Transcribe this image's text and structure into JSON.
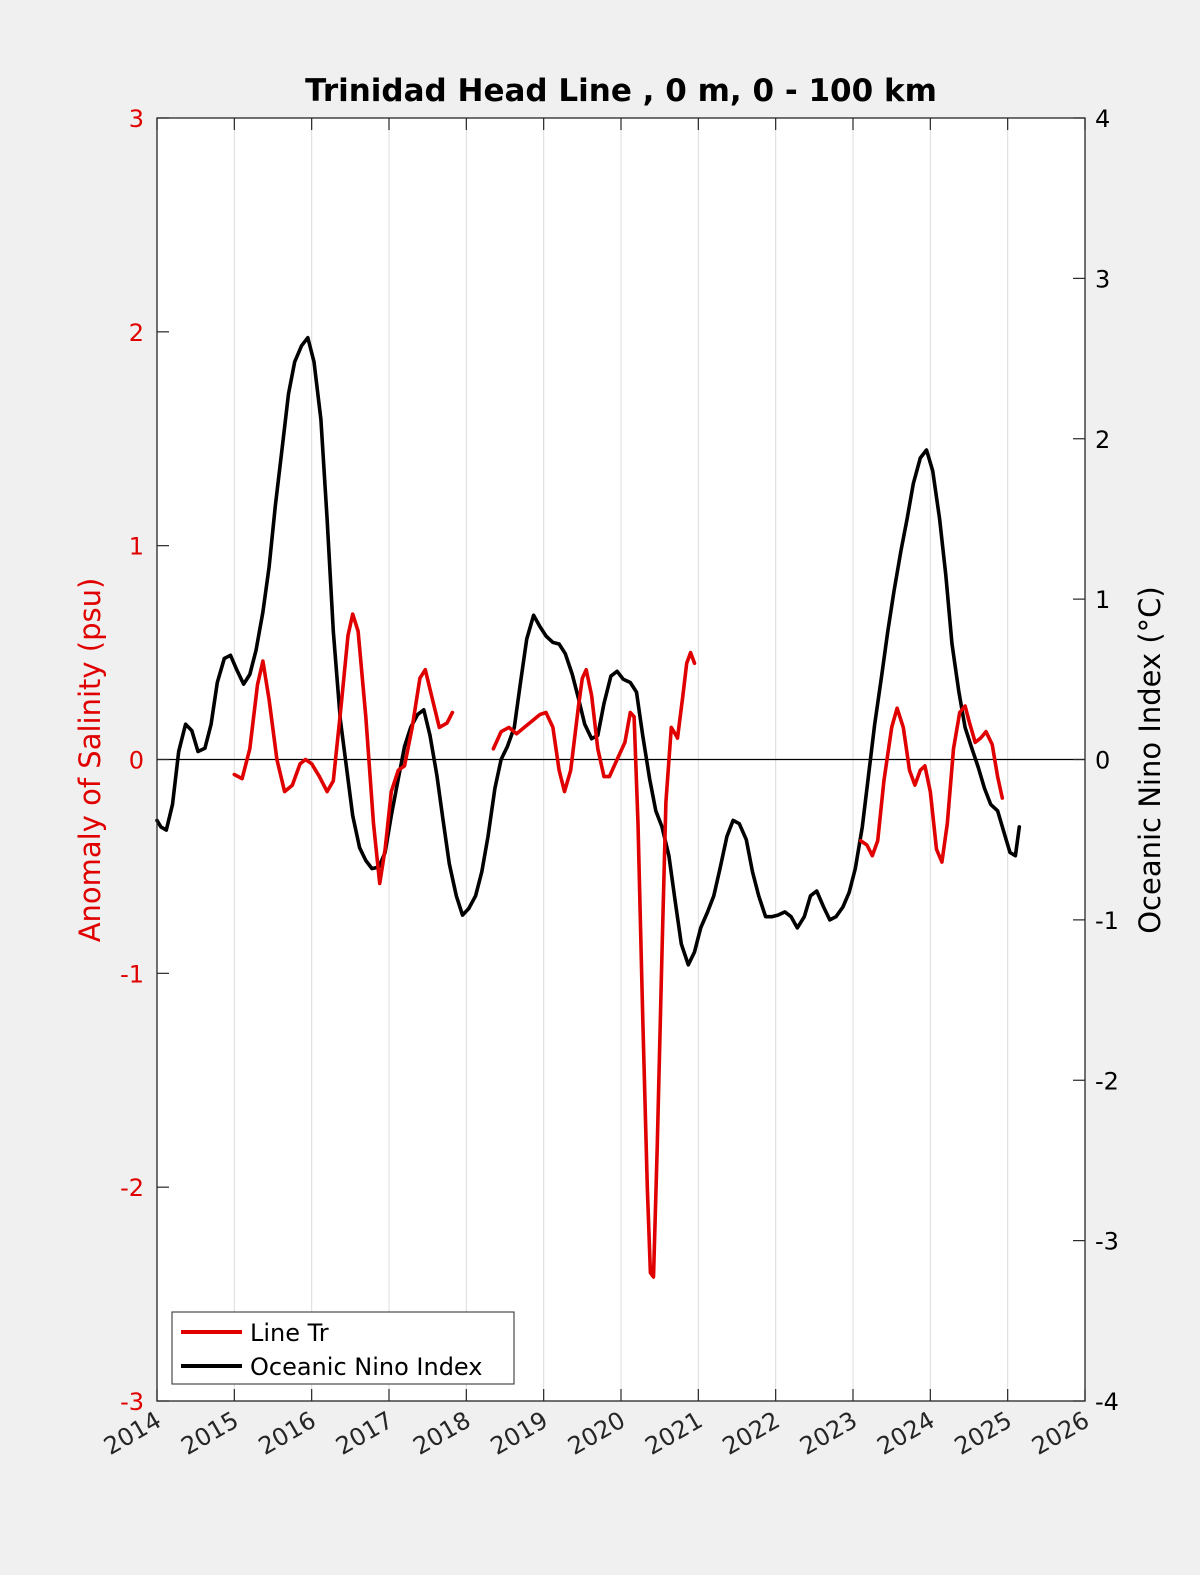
{
  "chart_data": {
    "type": "line",
    "title": "Trinidad Head Line , 0 m, 0 - 100 km",
    "xlabel": "",
    "ylabel_left": "Anomaly of Salinity (psu)",
    "ylabel_right": "Oceanic Nino Index (°C)",
    "xlim": [
      2014,
      2026
    ],
    "ylim_left": [
      -3,
      3
    ],
    "ylim_right": [
      -4,
      4
    ],
    "x_ticks": [
      "2014",
      "2015",
      "2016",
      "2017",
      "2018",
      "2019",
      "2020",
      "2021",
      "2022",
      "2023",
      "2024",
      "2025",
      "2026"
    ],
    "y_left_ticks": [
      "3",
      "2",
      "1",
      "0",
      "-1",
      "-2",
      "-3"
    ],
    "y_right_ticks": [
      "4",
      "3",
      "2",
      "1",
      "0",
      "-1",
      "-2",
      "-3",
      "-4"
    ],
    "grid": "vertical",
    "legend_position": "bottom-left",
    "colors": {
      "salinity": "#e00000",
      "oni": "#000000",
      "left_axis": "#e00000",
      "right_axis": "#000000",
      "background": "#f0f0f0"
    },
    "series": [
      {
        "name": "Line Tr",
        "axis": "left",
        "segments": [
          [
            [
              2015.0,
              -0.07
            ],
            [
              2015.1,
              -0.09
            ],
            [
              2015.2,
              0.05
            ],
            [
              2015.3,
              0.35
            ],
            [
              2015.37,
              0.46
            ],
            [
              2015.45,
              0.28
            ],
            [
              2015.55,
              0.0
            ],
            [
              2015.65,
              -0.15
            ],
            [
              2015.75,
              -0.12
            ],
            [
              2015.85,
              -0.02
            ],
            [
              2015.92,
              0.0
            ],
            [
              2016.0,
              -0.02
            ],
            [
              2016.1,
              -0.08
            ],
            [
              2016.2,
              -0.15
            ],
            [
              2016.28,
              -0.1
            ],
            [
              2016.38,
              0.25
            ],
            [
              2016.47,
              0.58
            ],
            [
              2016.53,
              0.68
            ],
            [
              2016.6,
              0.6
            ],
            [
              2016.7,
              0.2
            ],
            [
              2016.8,
              -0.3
            ],
            [
              2016.88,
              -0.58
            ],
            [
              2016.95,
              -0.42
            ],
            [
              2017.03,
              -0.15
            ],
            [
              2017.12,
              -0.05
            ],
            [
              2017.2,
              -0.03
            ],
            [
              2017.3,
              0.15
            ],
            [
              2017.4,
              0.38
            ],
            [
              2017.47,
              0.42
            ],
            [
              2017.55,
              0.3
            ],
            [
              2017.65,
              0.15
            ],
            [
              2017.75,
              0.17
            ],
            [
              2017.82,
              0.22
            ]
          ],
          [
            [
              2018.35,
              0.05
            ],
            [
              2018.45,
              0.13
            ],
            [
              2018.55,
              0.15
            ],
            [
              2018.65,
              0.12
            ],
            [
              2018.75,
              0.15
            ],
            [
              2018.85,
              0.18
            ],
            [
              2018.95,
              0.21
            ],
            [
              2019.03,
              0.22
            ],
            [
              2019.12,
              0.15
            ],
            [
              2019.2,
              -0.05
            ],
            [
              2019.27,
              -0.15
            ],
            [
              2019.35,
              -0.05
            ],
            [
              2019.45,
              0.25
            ],
            [
              2019.5,
              0.38
            ],
            [
              2019.55,
              0.42
            ],
            [
              2019.62,
              0.3
            ],
            [
              2019.7,
              0.05
            ],
            [
              2019.78,
              -0.08
            ],
            [
              2019.85,
              -0.08
            ],
            [
              2019.95,
              0.0
            ],
            [
              2020.05,
              0.08
            ],
            [
              2020.12,
              0.22
            ],
            [
              2020.17,
              0.2
            ],
            [
              2020.22,
              -0.3
            ],
            [
              2020.28,
              -1.2
            ],
            [
              2020.34,
              -2.0
            ],
            [
              2020.38,
              -2.4
            ],
            [
              2020.42,
              -2.42
            ],
            [
              2020.47,
              -1.8
            ],
            [
              2020.53,
              -0.9
            ],
            [
              2020.58,
              -0.2
            ],
            [
              2020.65,
              0.15
            ],
            [
              2020.7,
              0.12
            ],
            [
              2020.73,
              0.1
            ],
            [
              2020.8,
              0.3
            ],
            [
              2020.85,
              0.45
            ],
            [
              2020.9,
              0.5
            ],
            [
              2020.95,
              0.45
            ]
          ],
          [
            [
              2023.1,
              -0.38
            ],
            [
              2023.18,
              -0.4
            ],
            [
              2023.25,
              -0.45
            ],
            [
              2023.32,
              -0.38
            ],
            [
              2023.4,
              -0.1
            ],
            [
              2023.5,
              0.15
            ],
            [
              2023.57,
              0.24
            ],
            [
              2023.65,
              0.15
            ],
            [
              2023.73,
              -0.05
            ],
            [
              2023.8,
              -0.12
            ],
            [
              2023.87,
              -0.05
            ],
            [
              2023.93,
              -0.03
            ],
            [
              2024.0,
              -0.15
            ],
            [
              2024.08,
              -0.42
            ],
            [
              2024.15,
              -0.48
            ],
            [
              2024.22,
              -0.3
            ],
            [
              2024.3,
              0.05
            ],
            [
              2024.38,
              0.22
            ],
            [
              2024.45,
              0.25
            ],
            [
              2024.5,
              0.18
            ],
            [
              2024.58,
              0.08
            ],
            [
              2024.65,
              0.1
            ],
            [
              2024.72,
              0.13
            ],
            [
              2024.8,
              0.07
            ],
            [
              2024.87,
              -0.08
            ],
            [
              2024.93,
              -0.18
            ]
          ]
        ]
      },
      {
        "name": "Oceanic Nino Index",
        "axis": "right",
        "segments": [
          [
            [
              2014.0,
              -0.38
            ],
            [
              2014.05,
              -0.42
            ],
            [
              2014.12,
              -0.44
            ],
            [
              2014.2,
              -0.28
            ],
            [
              2014.28,
              0.05
            ],
            [
              2014.37,
              0.22
            ],
            [
              2014.45,
              0.18
            ],
            [
              2014.53,
              0.05
            ],
            [
              2014.62,
              0.07
            ],
            [
              2014.7,
              0.22
            ],
            [
              2014.78,
              0.48
            ],
            [
              2014.87,
              0.63
            ],
            [
              2014.95,
              0.65
            ],
            [
              2015.03,
              0.56
            ],
            [
              2015.12,
              0.47
            ],
            [
              2015.2,
              0.53
            ],
            [
              2015.28,
              0.68
            ],
            [
              2015.37,
              0.92
            ],
            [
              2015.45,
              1.2
            ],
            [
              2015.53,
              1.58
            ],
            [
              2015.62,
              1.95
            ],
            [
              2015.7,
              2.28
            ],
            [
              2015.78,
              2.48
            ],
            [
              2015.87,
              2.58
            ],
            [
              2015.95,
              2.63
            ],
            [
              2016.03,
              2.48
            ],
            [
              2016.12,
              2.12
            ],
            [
              2016.2,
              1.5
            ],
            [
              2016.28,
              0.8
            ],
            [
              2016.37,
              0.25
            ],
            [
              2016.45,
              -0.05
            ],
            [
              2016.53,
              -0.35
            ],
            [
              2016.62,
              -0.55
            ],
            [
              2016.7,
              -0.63
            ],
            [
              2016.78,
              -0.68
            ],
            [
              2016.87,
              -0.67
            ],
            [
              2016.95,
              -0.58
            ],
            [
              2017.03,
              -0.35
            ],
            [
              2017.12,
              -0.12
            ],
            [
              2017.2,
              0.08
            ],
            [
              2017.28,
              0.2
            ],
            [
              2017.37,
              0.28
            ],
            [
              2017.45,
              0.31
            ],
            [
              2017.53,
              0.15
            ],
            [
              2017.62,
              -0.1
            ],
            [
              2017.7,
              -0.38
            ],
            [
              2017.78,
              -0.65
            ],
            [
              2017.87,
              -0.85
            ],
            [
              2017.95,
              -0.97
            ],
            [
              2018.03,
              -0.93
            ],
            [
              2018.12,
              -0.85
            ],
            [
              2018.2,
              -0.7
            ],
            [
              2018.28,
              -0.48
            ],
            [
              2018.37,
              -0.18
            ],
            [
              2018.45,
              0.0
            ],
            [
              2018.53,
              0.08
            ],
            [
              2018.62,
              0.2
            ],
            [
              2018.7,
              0.48
            ],
            [
              2018.78,
              0.75
            ],
            [
              2018.87,
              0.9
            ],
            [
              2018.95,
              0.83
            ],
            [
              2019.03,
              0.77
            ],
            [
              2019.12,
              0.73
            ],
            [
              2019.2,
              0.72
            ],
            [
              2019.28,
              0.66
            ],
            [
              2019.37,
              0.53
            ],
            [
              2019.45,
              0.38
            ],
            [
              2019.53,
              0.22
            ],
            [
              2019.62,
              0.13
            ],
            [
              2019.7,
              0.15
            ],
            [
              2019.78,
              0.35
            ],
            [
              2019.87,
              0.52
            ],
            [
              2019.95,
              0.55
            ],
            [
              2020.03,
              0.5
            ],
            [
              2020.12,
              0.48
            ],
            [
              2020.2,
              0.42
            ],
            [
              2020.28,
              0.15
            ],
            [
              2020.37,
              -0.12
            ],
            [
              2020.45,
              -0.32
            ],
            [
              2020.53,
              -0.42
            ],
            [
              2020.62,
              -0.6
            ],
            [
              2020.7,
              -0.88
            ],
            [
              2020.78,
              -1.15
            ],
            [
              2020.87,
              -1.28
            ],
            [
              2020.95,
              -1.2
            ],
            [
              2021.03,
              -1.05
            ],
            [
              2021.12,
              -0.95
            ],
            [
              2021.2,
              -0.85
            ],
            [
              2021.28,
              -0.68
            ],
            [
              2021.37,
              -0.48
            ],
            [
              2021.45,
              -0.38
            ],
            [
              2021.53,
              -0.4
            ],
            [
              2021.62,
              -0.5
            ],
            [
              2021.7,
              -0.7
            ],
            [
              2021.78,
              -0.85
            ],
            [
              2021.87,
              -0.98
            ],
            [
              2021.95,
              -0.98
            ],
            [
              2022.03,
              -0.97
            ],
            [
              2022.12,
              -0.95
            ],
            [
              2022.2,
              -0.98
            ],
            [
              2022.28,
              -1.05
            ],
            [
              2022.37,
              -0.98
            ],
            [
              2022.45,
              -0.85
            ],
            [
              2022.53,
              -0.82
            ],
            [
              2022.62,
              -0.92
            ],
            [
              2022.7,
              -1.0
            ],
            [
              2022.78,
              -0.98
            ],
            [
              2022.87,
              -0.92
            ],
            [
              2022.95,
              -0.83
            ],
            [
              2023.03,
              -0.68
            ],
            [
              2023.12,
              -0.42
            ],
            [
              2023.2,
              -0.1
            ],
            [
              2023.28,
              0.22
            ],
            [
              2023.37,
              0.52
            ],
            [
              2023.45,
              0.8
            ],
            [
              2023.53,
              1.05
            ],
            [
              2023.62,
              1.3
            ],
            [
              2023.7,
              1.5
            ],
            [
              2023.78,
              1.72
            ],
            [
              2023.87,
              1.88
            ],
            [
              2023.95,
              1.93
            ],
            [
              2024.03,
              1.8
            ],
            [
              2024.12,
              1.5
            ],
            [
              2024.2,
              1.15
            ],
            [
              2024.28,
              0.72
            ],
            [
              2024.37,
              0.42
            ],
            [
              2024.45,
              0.2
            ],
            [
              2024.53,
              0.08
            ],
            [
              2024.62,
              -0.05
            ],
            [
              2024.7,
              -0.18
            ],
            [
              2024.78,
              -0.28
            ],
            [
              2024.87,
              -0.32
            ],
            [
              2024.95,
              -0.45
            ],
            [
              2025.03,
              -0.58
            ],
            [
              2025.1,
              -0.6
            ],
            [
              2025.15,
              -0.42
            ]
          ]
        ]
      }
    ]
  }
}
